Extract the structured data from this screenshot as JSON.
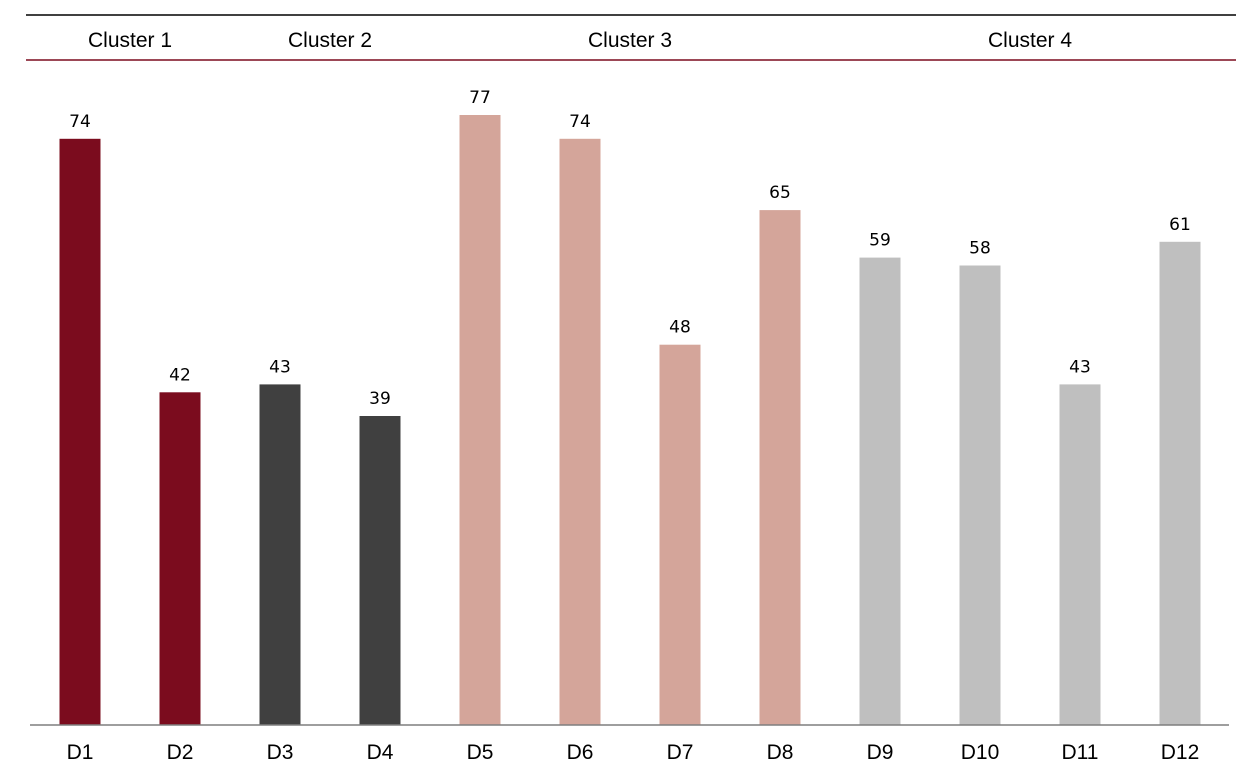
{
  "chart_data": {
    "type": "bar",
    "categories": [
      "D1",
      "D2",
      "D3",
      "D4",
      "D5",
      "D6",
      "D7",
      "D8",
      "D9",
      "D10",
      "D11",
      "D12"
    ],
    "values": [
      74,
      42,
      43,
      39,
      77,
      74,
      48,
      65,
      59,
      58,
      43,
      61
    ],
    "groups": [
      {
        "name": "Cluster 1",
        "members": [
          "D1",
          "D2"
        ],
        "color": "#7b0c1e"
      },
      {
        "name": "Cluster 2",
        "members": [
          "D3",
          "D4"
        ],
        "color": "#404040"
      },
      {
        "name": "Cluster 3",
        "members": [
          "D5",
          "D6",
          "D7",
          "D8"
        ],
        "color": "#d4a59a"
      },
      {
        "name": "Cluster 4",
        "members": [
          "D9",
          "D10",
          "D11",
          "D12"
        ],
        "color": "#bfbfbf"
      }
    ],
    "ylim": [
      0,
      77
    ],
    "grid": false,
    "data_labels": true,
    "colors": {
      "header_rule_top": "#000000",
      "header_rule_bottom": "#7b0c1e",
      "axis": "#7f7f7f"
    }
  }
}
